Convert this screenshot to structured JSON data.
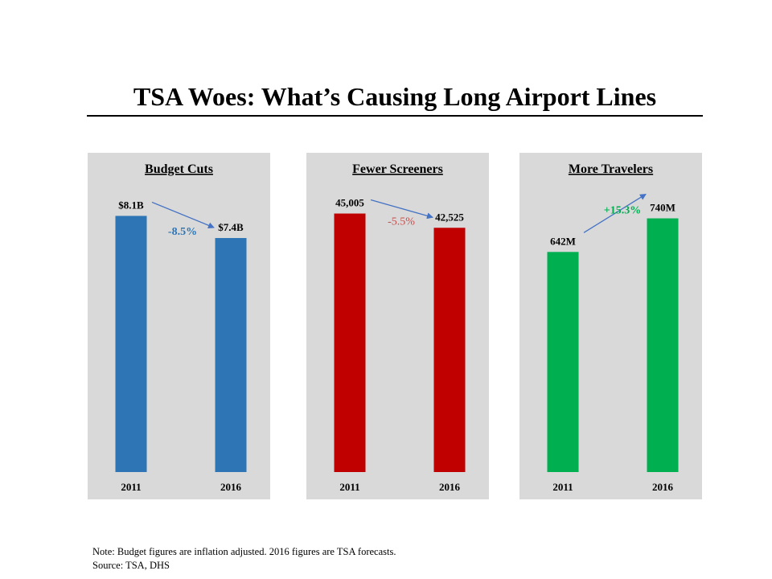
{
  "page": {
    "title": "TSA Woes: What’s Causing Long Airport Lines"
  },
  "chart_data": [
    {
      "type": "bar",
      "title": "Budget Cuts",
      "categories": [
        "2011",
        "2016"
      ],
      "values": [
        8.1,
        7.4
      ],
      "value_labels": [
        "$8.1B",
        "$7.4B"
      ],
      "unit": "billion USD",
      "change_label": "-8.5%",
      "color": "#2e75b6",
      "change_color": "#2e75b6",
      "ylim": [
        0,
        8.9
      ]
    },
    {
      "type": "bar",
      "title": "Fewer Screeners",
      "categories": [
        "2011",
        "2016"
      ],
      "values": [
        45005,
        42525
      ],
      "value_labels": [
        "45,005",
        "42,525"
      ],
      "change_label": "-5.5%",
      "color": "#c00000",
      "change_color": "#c0504d",
      "ylim": [
        0,
        49000
      ]
    },
    {
      "type": "bar",
      "title": "More Travelers",
      "categories": [
        "2011",
        "2016"
      ],
      "values": [
        642,
        740
      ],
      "value_labels": [
        "642M",
        "740M"
      ],
      "unit": "million",
      "change_label": "+15.3%",
      "color": "#00b050",
      "change_color": "#00b050",
      "ylim": [
        0,
        821
      ]
    }
  ],
  "note": {
    "line1": "Note: Budget figures are inflation  adjusted. 2016 figures are TSA forecasts.",
    "line2": "Source: TSA, DHS"
  },
  "colors": {
    "panel_background": "#d9d9d9",
    "arrow": "#4472c4"
  }
}
